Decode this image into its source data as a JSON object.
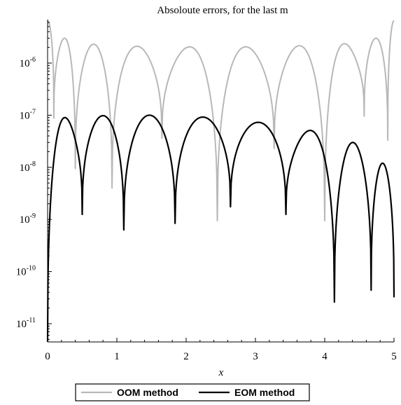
{
  "chart_data": {
    "type": "line",
    "title": "Absoloute errors, for the last m",
    "xlabel": "x",
    "ylabel": "",
    "xlim": [
      0,
      5
    ],
    "ylim": [
      4.5e-12,
      7e-06
    ],
    "yscale": "log",
    "x_ticks": [
      "0",
      "1",
      "2",
      "3",
      "4",
      "5"
    ],
    "y_ticks": [
      {
        "base": "10",
        "exp": "-11",
        "value": 1e-11
      },
      {
        "base": "10",
        "exp": "-10",
        "value": 1e-10
      },
      {
        "base": "10",
        "exp": "-9",
        "value": 1e-09
      },
      {
        "base": "10",
        "exp": "-8",
        "value": 1e-08
      },
      {
        "base": "10",
        "exp": "-7",
        "value": 1e-07
      },
      {
        "base": "10",
        "exp": "-6",
        "value": 1e-06
      }
    ],
    "grid": false,
    "legend_position": "bottom",
    "series": [
      {
        "name": "OOM method",
        "color": "#b8b8b8",
        "zeros": [
          0.09,
          0.4,
          0.93,
          1.65,
          2.45,
          3.27,
          4.0,
          4.57,
          4.91
        ],
        "zero_values": [
          8.8e-08,
          9.5e-09,
          4e-09,
          3.6e-08,
          9.5e-10,
          2.3e-08,
          9.5e-10,
          9.6e-08,
          3.3e-08
        ],
        "peaks": [
          {
            "x": 0.0,
            "y": 6.5e-06
          },
          {
            "x": 0.2,
            "y": 3e-06
          },
          {
            "x": 0.62,
            "y": 2.3e-06
          },
          {
            "x": 1.28,
            "y": 2.1e-06
          },
          {
            "x": 2.05,
            "y": 2.05e-06
          },
          {
            "x": 2.87,
            "y": 2.05e-06
          },
          {
            "x": 3.65,
            "y": 2.15e-06
          },
          {
            "x": 4.29,
            "y": 2.35e-06
          },
          {
            "x": 4.75,
            "y": 3e-06
          },
          {
            "x": 5.0,
            "y": 6.5e-06
          }
        ]
      },
      {
        "name": "EOM method",
        "color": "#000000",
        "zeros": [
          0.0,
          0.5,
          1.1,
          1.84,
          2.64,
          3.44,
          4.14,
          4.67,
          5.0
        ],
        "zero_values": [
          4.5e-12,
          1.25e-09,
          6.3e-10,
          8.4e-10,
          1.75e-09,
          1.25e-09,
          2.6e-11,
          4.4e-11,
          3.2e-11
        ],
        "peaks": [
          {
            "x": 0.28,
            "y": 9e-08
          },
          {
            "x": 0.77,
            "y": 9.8e-08
          },
          {
            "x": 1.45,
            "y": 1e-07
          },
          {
            "x": 2.24,
            "y": 9.2e-08
          },
          {
            "x": 3.03,
            "y": 7.3e-08
          },
          {
            "x": 3.77,
            "y": 5.1e-08
          },
          {
            "x": 4.4,
            "y": 3e-08
          },
          {
            "x": 4.83,
            "y": 1.2e-08
          }
        ]
      }
    ]
  }
}
